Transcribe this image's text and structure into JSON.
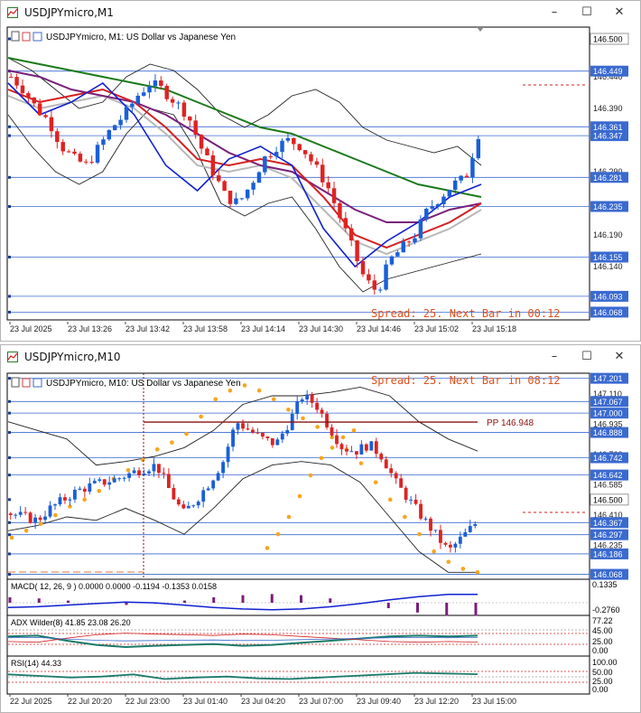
{
  "window1": {
    "title": "USDJPYmicro,M1",
    "chart_label": "USDJPYmicro, M1:  US Dollar vs Japanese Yen",
    "status": "Spread: 25. Next Bar in 00:12",
    "controls": {
      "minimize": "–",
      "maximize": "☐",
      "close": "✕"
    }
  },
  "window2": {
    "title": "USDJPYmicro,M10",
    "chart_label": "USDJPYmicro, M10:  US Dollar vs Japanese Yen",
    "status": "Spread: 25. Next Bar in 08:12",
    "pivot_label": "PP 146.948",
    "macd_label": "MACD( 12, 26, 9 ) 0.0000 0.0000 -0.1194 -0.1353 0.0158",
    "adx_label": "ADX Wilder(8) 41.85 23.08 26.20",
    "rsi_label": "RSI(14) 44.33",
    "controls": {
      "minimize": "–",
      "maximize": "☐",
      "close": "✕"
    }
  },
  "colors": {
    "bull": "#1a5fd8",
    "bear": "#e02222",
    "ma_green": "#1b7a1b",
    "ma_purple": "#7a1f7a",
    "ma_red": "#d42020",
    "ma_gray": "#b8b8b8",
    "ma_blue": "#1020d0",
    "bands": "#222222",
    "sar": "#f7a51d",
    "hline": "#3a6ad0",
    "pivot": "#8b1010",
    "price_box": "#3a6ad0"
  },
  "chart_data": [
    {
      "type": "candlestick",
      "title": "USDJPYmicro, M1:  US Dollar vs Japanese Yen",
      "ylim": [
        146.06,
        146.51
      ],
      "y_ticks": [
        "146.500",
        "146.440",
        "146.390",
        "146.290",
        "146.190",
        "146.140"
      ],
      "price_labels": [
        {
          "value": 146.5,
          "text": "146.500",
          "kind": "plain"
        },
        {
          "value": 146.449,
          "text": "146.449",
          "kind": "box"
        },
        {
          "value": 146.361,
          "text": "146.361",
          "kind": "box"
        },
        {
          "value": 146.347,
          "text": "146.347",
          "kind": "box"
        },
        {
          "value": 146.281,
          "text": "146.281",
          "kind": "box"
        },
        {
          "value": 146.235,
          "text": "146.235",
          "kind": "box"
        },
        {
          "value": 146.155,
          "text": "146.155",
          "kind": "box"
        },
        {
          "value": 146.093,
          "text": "146.093",
          "kind": "box"
        },
        {
          "value": 146.068,
          "text": "146.068",
          "kind": "box"
        }
      ],
      "x_labels": [
        "23 Jul 2025",
        "23 Jul 13:26",
        "23 Jul 13:42",
        "23 Jul 13:58",
        "23 Jul 14:14",
        "23 Jul 14:30",
        "23 Jul 14:46",
        "23 Jul 15:02",
        "23 Jul 15:18"
      ],
      "close_path": [
        146.44,
        146.42,
        146.39,
        146.37,
        146.33,
        146.31,
        146.3,
        146.33,
        146.36,
        146.38,
        146.41,
        146.43,
        146.42,
        146.4,
        146.38,
        146.33,
        146.29,
        146.25,
        146.24,
        146.27,
        146.31,
        146.33,
        146.34,
        146.33,
        146.3,
        146.27,
        146.22,
        146.17,
        146.12,
        146.1,
        146.15,
        146.17,
        146.19,
        146.23,
        146.25,
        146.27,
        146.28,
        146.35
      ],
      "upper_band": [
        146.47,
        146.45,
        146.42,
        146.39,
        146.4,
        146.44,
        146.46,
        146.45,
        146.42,
        146.38,
        146.36,
        146.38,
        146.41,
        146.42,
        146.4,
        146.36,
        146.34,
        146.33,
        146.32,
        146.33,
        146.3
      ],
      "lower_band": [
        146.38,
        146.33,
        146.29,
        146.27,
        146.29,
        146.35,
        146.39,
        146.38,
        146.32,
        146.24,
        146.22,
        146.24,
        146.25,
        146.2,
        146.14,
        146.1,
        146.12,
        146.13,
        146.14,
        146.15,
        146.16
      ],
      "ma_green": [
        146.47,
        146.46,
        146.45,
        146.44,
        146.43,
        146.42,
        146.4,
        146.38,
        146.36,
        146.35,
        146.33,
        146.31,
        146.29,
        146.27,
        146.26,
        146.25
      ],
      "ma_purple": [
        146.45,
        146.44,
        146.42,
        146.41,
        146.4,
        146.38,
        146.35,
        146.32,
        146.3,
        146.29,
        146.26,
        146.23,
        146.21,
        146.21,
        146.23,
        146.24
      ],
      "ma_red": [
        146.42,
        146.4,
        146.41,
        146.42,
        146.4,
        146.36,
        146.31,
        146.3,
        146.31,
        146.3,
        146.25,
        146.19,
        146.17,
        146.19,
        146.21,
        146.24
      ],
      "ma_gray": [
        146.41,
        146.39,
        146.4,
        146.41,
        146.39,
        146.35,
        146.3,
        146.29,
        146.3,
        146.28,
        146.23,
        146.18,
        146.16,
        146.18,
        146.2,
        146.23
      ],
      "ma_blue": [
        146.43,
        146.38,
        146.4,
        146.43,
        146.38,
        146.3,
        146.26,
        146.31,
        146.33,
        146.3,
        146.2,
        146.14,
        146.18,
        146.21,
        146.25,
        146.27
      ]
    },
    {
      "type": "candlestick",
      "title": "USDJPYmicro, M10:  US Dollar vs Japanese Yen",
      "ylim": [
        146.05,
        147.22
      ],
      "y_ticks": [
        "147.110",
        "146.935",
        "146.760",
        "146.585",
        "146.410",
        "146.235"
      ],
      "price_labels": [
        {
          "value": 147.201,
          "text": "147.201",
          "kind": "box"
        },
        {
          "value": 147.067,
          "text": "147.067",
          "kind": "box"
        },
        {
          "value": 147.0,
          "text": "147.000",
          "kind": "box"
        },
        {
          "value": 146.888,
          "text": "146.888",
          "kind": "box"
        },
        {
          "value": 146.742,
          "text": "146.742",
          "kind": "box"
        },
        {
          "value": 146.642,
          "text": "146.642",
          "kind": "box"
        },
        {
          "value": 146.5,
          "text": "146.500",
          "kind": "plain"
        },
        {
          "value": 146.367,
          "text": "146.367",
          "kind": "box"
        },
        {
          "value": 146.297,
          "text": "146.297",
          "kind": "box"
        },
        {
          "value": 146.186,
          "text": "146.186",
          "kind": "box"
        },
        {
          "value": 146.068,
          "text": "146.068",
          "kind": "box"
        }
      ],
      "pivot": 146.948,
      "x_labels": [
        "22 Jul 2025",
        "22 Jul 20:20",
        "22 Jul 23:00",
        "23 Jul 01:40",
        "23 Jul 04:20",
        "23 Jul 07:00",
        "23 Jul 09:40",
        "23 Jul 12:20",
        "23 Jul 15:00"
      ],
      "close_path": [
        146.42,
        146.4,
        146.38,
        146.45,
        146.5,
        146.55,
        146.58,
        146.6,
        146.62,
        146.65,
        146.68,
        146.7,
        146.55,
        146.42,
        146.5,
        146.6,
        146.72,
        146.95,
        146.9,
        146.85,
        146.82,
        146.95,
        147.1,
        147.05,
        146.92,
        146.8,
        146.78,
        146.82,
        146.75,
        146.6,
        146.5,
        146.4,
        146.3,
        146.2,
        146.28,
        146.36
      ],
      "sar": [
        146.28,
        146.32,
        146.36,
        146.41,
        146.46,
        146.5,
        146.55,
        146.62,
        146.67,
        146.73,
        146.79,
        146.83,
        146.88,
        146.98,
        147.08,
        147.13,
        147.16,
        147.13,
        147.08,
        147.02,
        146.97,
        146.92,
        146.86,
        146.79,
        146.71,
        146.6,
        146.5,
        146.4,
        146.3,
        146.2,
        146.14,
        146.1,
        146.08
      ],
      "sar2": [
        146.22,
        146.3,
        146.4,
        146.52,
        146.64,
        146.74,
        146.8,
        146.86,
        146.9
      ],
      "upper_band": [
        146.95,
        146.9,
        146.85,
        146.7,
        146.72,
        146.75,
        146.8,
        146.9,
        147.05,
        147.1,
        147.1,
        147.12,
        147.15,
        147.1,
        146.95,
        146.85,
        146.78
      ],
      "lower_band": [
        146.32,
        146.35,
        146.4,
        146.38,
        146.45,
        146.38,
        146.3,
        146.45,
        146.62,
        146.7,
        146.72,
        146.7,
        146.6,
        146.4,
        146.2,
        146.08,
        146.08
      ],
      "macd": [
        0.05,
        0.04,
        0.02,
        0.0,
        -0.02,
        -0.01,
        0.02,
        0.05,
        0.07,
        0.08,
        0.07,
        0.04,
        0.0,
        -0.05,
        -0.09,
        -0.12,
        -0.12
      ],
      "adx": [
        40,
        42,
        30,
        20,
        15,
        18,
        20,
        22,
        18,
        20,
        25,
        30,
        35,
        40,
        42,
        40,
        41.85
      ],
      "rsi": [
        45,
        50,
        55,
        52,
        45,
        60,
        55,
        52,
        58,
        60,
        55,
        50,
        45,
        40,
        42,
        44.33
      ]
    }
  ]
}
